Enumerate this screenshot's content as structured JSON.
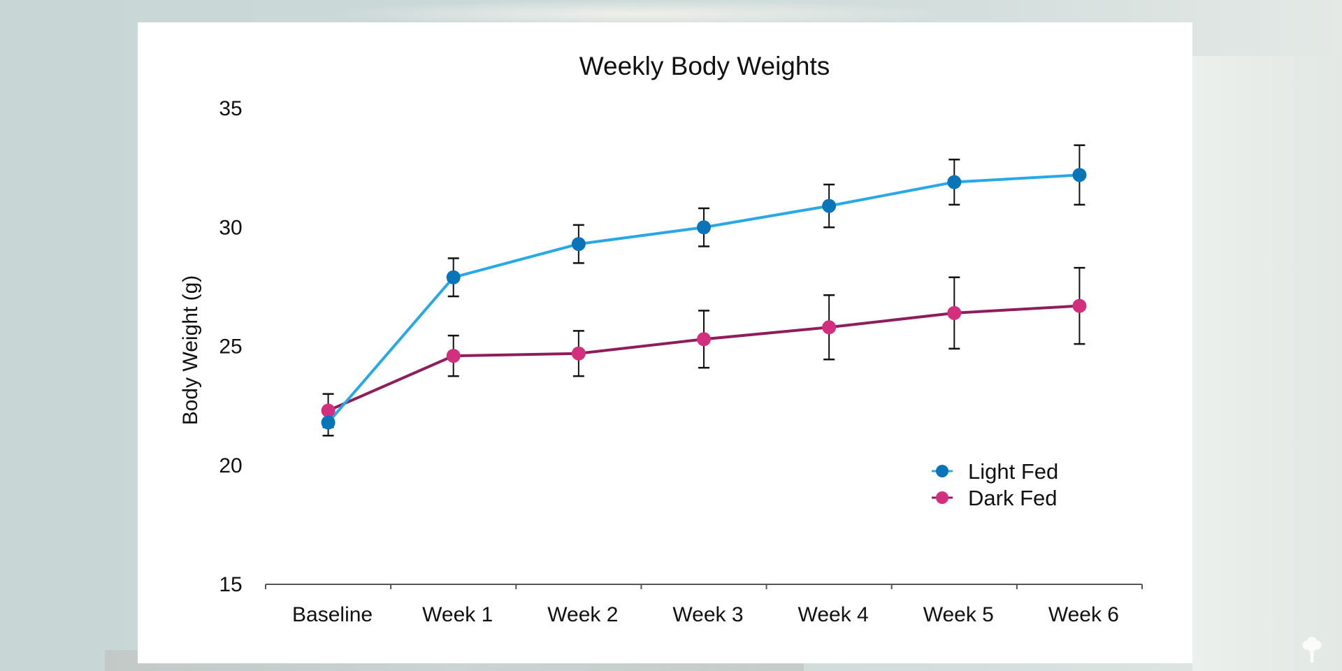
{
  "colors": {
    "light_fed_line": "#29a8e8",
    "light_fed_marker": "#0a74b9",
    "dark_fed_line": "#8e1d5c",
    "dark_fed_marker": "#d2307f",
    "error_bar": "#111111",
    "axis": "#555555"
  },
  "icons": {
    "corner": "tree-icon"
  },
  "chart_data": {
    "type": "line",
    "title": "Weekly Body Weights",
    "xlabel": "",
    "ylabel": "Body Weight (g)",
    "ylim": [
      15,
      35
    ],
    "yticks": [
      "15",
      "20",
      "25",
      "30",
      "35"
    ],
    "ytick_values": [
      15,
      20,
      25,
      30,
      35
    ],
    "categories": [
      "Baseline",
      "Week 1",
      "Week 2",
      "Week 3",
      "Week 4",
      "Week 5",
      "Week 6"
    ],
    "grid": false,
    "legend_position": "bottom-right",
    "series": [
      {
        "name": "Light Fed",
        "values": [
          21.8,
          27.9,
          29.3,
          30.0,
          30.9,
          31.9,
          32.2
        ],
        "errors": [
          0.55,
          0.8,
          0.8,
          0.8,
          0.9,
          0.95,
          1.25
        ]
      },
      {
        "name": "Dark Fed",
        "values": [
          22.3,
          24.6,
          24.7,
          25.3,
          25.8,
          26.4,
          26.7
        ],
        "errors": [
          0.7,
          0.85,
          0.95,
          1.2,
          1.35,
          1.5,
          1.6
        ]
      }
    ]
  }
}
